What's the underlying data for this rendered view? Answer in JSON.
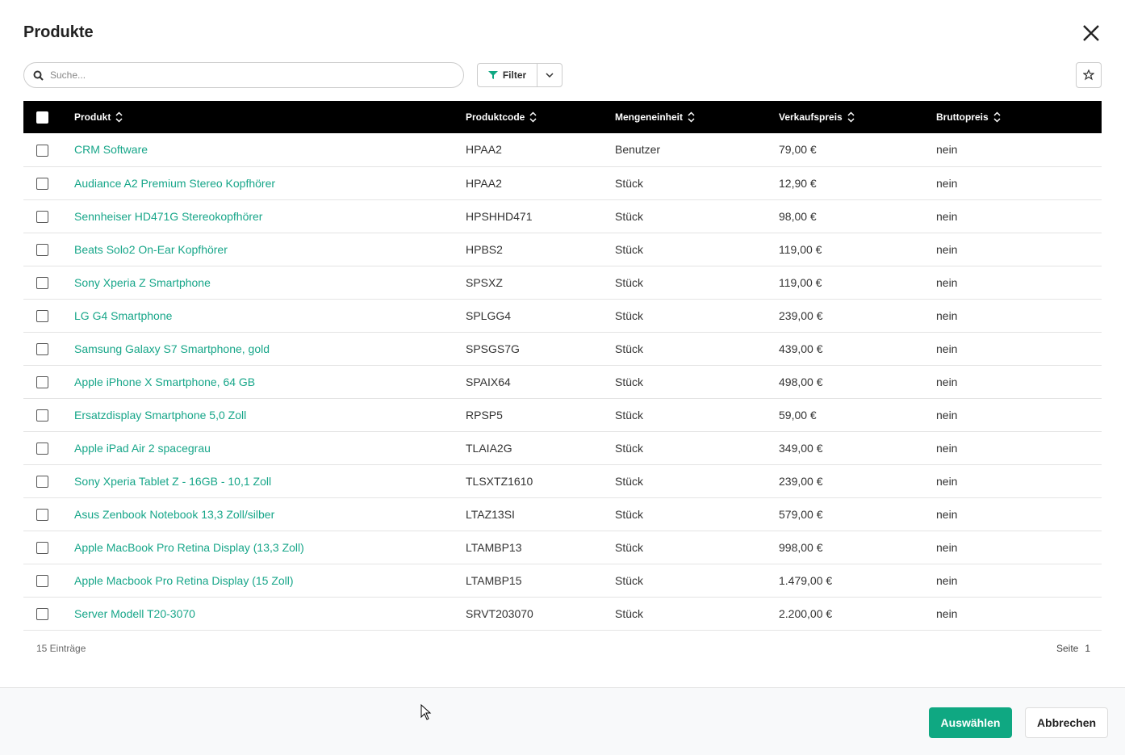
{
  "header": {
    "title": "Produkte"
  },
  "search": {
    "placeholder": "Suche..."
  },
  "filter": {
    "label": "Filter"
  },
  "table": {
    "columns": [
      "Produkt",
      "Produktcode",
      "Mengeneinheit",
      "Verkaufspreis",
      "Bruttopreis"
    ],
    "rows": [
      [
        "CRM Software",
        "HPAA2",
        "Benutzer",
        "79,00 €",
        "nein"
      ],
      [
        "Audiance A2 Premium Stereo Kopfhörer",
        "HPAA2",
        "Stück",
        "12,90 €",
        "nein"
      ],
      [
        "Sennheiser HD471G Stereokopfhörer",
        "HPSHHD471",
        "Stück",
        "98,00 €",
        "nein"
      ],
      [
        "Beats Solo2 On-Ear Kopfhörer",
        "HPBS2",
        "Stück",
        "119,00 €",
        "nein"
      ],
      [
        "Sony Xperia Z Smartphone",
        "SPSXZ",
        "Stück",
        "119,00 €",
        "nein"
      ],
      [
        "LG G4 Smartphone",
        "SPLGG4",
        "Stück",
        "239,00 €",
        "nein"
      ],
      [
        "Samsung Galaxy S7 Smartphone, gold",
        "SPSGS7G",
        "Stück",
        "439,00 €",
        "nein"
      ],
      [
        "Apple iPhone X Smartphone, 64 GB",
        "SPAIX64",
        "Stück",
        "498,00 €",
        "nein"
      ],
      [
        "Ersatzdisplay Smartphone 5,0 Zoll",
        "RPSP5",
        "Stück",
        "59,00 €",
        "nein"
      ],
      [
        "Apple iPad Air 2 spacegrau",
        "TLAIA2G",
        "Stück",
        "349,00 €",
        "nein"
      ],
      [
        "Sony Xperia Tablet Z - 16GB - 10,1 Zoll",
        "TLSXTZ1610",
        "Stück",
        "239,00 €",
        "nein"
      ],
      [
        "Asus Zenbook Notebook 13,3 Zoll/silber",
        "LTAZ13SI",
        "Stück",
        "579,00 €",
        "nein"
      ],
      [
        "Apple MacBook Pro Retina Display (13,3 Zoll)",
        "LTAMBP13",
        "Stück",
        "998,00 €",
        "nein"
      ],
      [
        "Apple Macbook Pro Retina Display (15 Zoll)",
        "LTAMBP15",
        "Stück",
        "1.479,00 €",
        "nein"
      ],
      [
        "Server Modell T20-3070",
        "SRVT203070",
        "Stück",
        "2.200,00 €",
        "nein"
      ]
    ]
  },
  "footer": {
    "count": "15 Einträge",
    "page_label": "Seite",
    "page": 1
  },
  "actions": {
    "select": "Auswählen",
    "cancel": "Abbrechen"
  }
}
